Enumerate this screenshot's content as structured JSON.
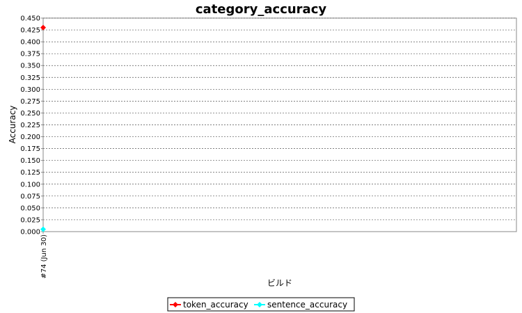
{
  "chart_data": {
    "type": "line",
    "title": "category_accuracy",
    "xlabel": "ビルド",
    "ylabel": "Accuracy",
    "categories": [
      "#74 (Jun 30)"
    ],
    "ylim": [
      0,
      0.45
    ],
    "yticks": [
      "0.000",
      "0.025",
      "0.050",
      "0.075",
      "0.100",
      "0.125",
      "0.150",
      "0.175",
      "0.200",
      "0.225",
      "0.250",
      "0.275",
      "0.300",
      "0.325",
      "0.350",
      "0.375",
      "0.400",
      "0.425",
      "0.450"
    ],
    "grid": true,
    "legend_position": "bottom",
    "series": [
      {
        "name": "token_accuracy",
        "color": "#ff0000",
        "values": [
          0.43
        ]
      },
      {
        "name": "sentence_accuracy",
        "color": "#00ffff",
        "values": [
          0.005
        ]
      }
    ]
  }
}
